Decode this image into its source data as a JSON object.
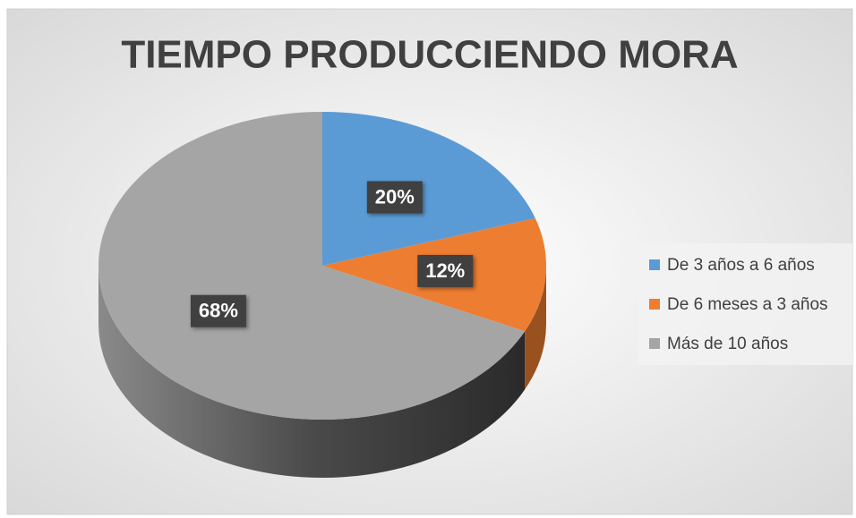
{
  "chart_data": {
    "type": "pie",
    "title": "TIEMPO PRODUCCIENDO MORA",
    "categories": [
      "De 3 años a 6 años",
      "De 6 meses a 3 años",
      "Más de 10 años"
    ],
    "values": [
      20,
      12,
      68
    ],
    "value_labels": [
      "20%",
      "12%",
      "68%"
    ],
    "colors": [
      "#5b9bd5",
      "#ed7d31",
      "#a5a5a5"
    ],
    "legend": "right"
  }
}
